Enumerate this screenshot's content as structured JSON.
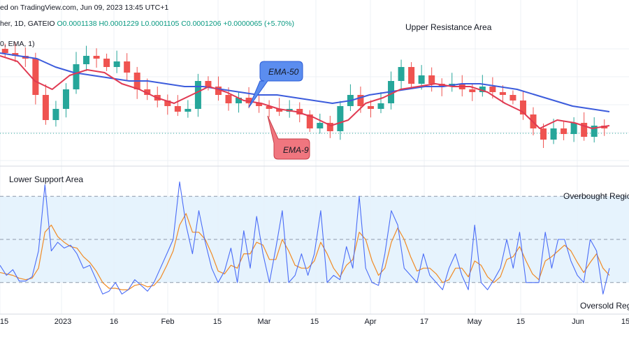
{
  "header": {
    "published": "ed on TradingView.com, Jun 09, 2023 13:45 UTC+1",
    "symbol_line": "her, 1D, GATEIO",
    "ohlc": {
      "open": "O0.0001138",
      "high": "H0.0001229",
      "low": "L0.0001105",
      "close": "C0.0001206",
      "change": "+0.0000065 (+5.70%)"
    },
    "ema_line": "0, EMA, 1)"
  },
  "annotations": {
    "upper_resistance": "Upper Resistance Area",
    "lower_support": "Lower Support Area",
    "overbought": "Overbought Regio",
    "oversold": "Oversold Regi",
    "ema50": "EMA-50",
    "ema9": "EMA-9"
  },
  "xaxis": {
    "tick_labels": [
      "15",
      "2023",
      "16",
      "Feb",
      "15",
      "Mar",
      "15",
      "Apr",
      "17",
      "May",
      "15",
      "Jun",
      "15"
    ]
  },
  "chart_data": {
    "type": "line",
    "price_panel": {
      "timeframe": "1D",
      "exchange": "GATEIO",
      "last": {
        "open": 0.0001138,
        "high": 0.0001229,
        "low": 0.0001105,
        "close": 0.0001206,
        "change": 6.5e-06,
        "change_pct": 5.7
      },
      "price_trace": [
        0.000151,
        0.00015,
        0.000149,
        0.000136,
        0.000127,
        0.000131,
        0.000138,
        0.000147,
        0.00015,
        0.000149,
        0.000146,
        0.000148,
        0.000144,
        0.000138,
        0.000136,
        0.000134,
        0.000132,
        0.00013,
        0.000131,
        0.000141,
        0.000139,
        0.000136,
        0.000133,
        0.000135,
        0.000133,
        0.000132,
        0.000131,
        0.00013,
        0.000131,
        0.000129,
        0.000124,
        0.000126,
        0.000123,
        0.000132,
        0.000136,
        0.000132,
        0.000131,
        0.000133,
        0.000141,
        0.000146,
        0.00014,
        0.000143,
        0.00014,
        0.000139,
        0.00014,
        0.000138,
        0.000137,
        0.000139,
        0.000137,
        0.000136,
        0.000134,
        0.000129,
        0.000124,
        0.00012,
        0.000124,
        0.000122,
        0.000126,
        0.000121,
        0.000125,
        0.000124
      ],
      "series": [
        {
          "name": "EMA-50",
          "color": "#3c5cdc",
          "values": [
            0.000151,
            0.00015,
            0.000149,
            0.000146,
            0.000144,
            0.000143,
            0.000142,
            0.000141,
            0.000141,
            0.00014,
            0.000139,
            0.000139,
            0.000138,
            0.000137,
            0.000136,
            0.000136,
            0.000135,
            0.000134,
            0.000133,
            0.000134,
            0.000136,
            0.000137,
            0.000138,
            0.000139,
            0.000139,
            0.00014,
            0.00014,
            0.000139,
            0.000138,
            0.000136,
            0.000134,
            0.000132,
            0.000131,
            0.00013
          ]
        },
        {
          "name": "EMA-9",
          "color": "#e03a52",
          "values": [
            0.00015,
            0.000148,
            0.000141,
            0.000138,
            0.000143,
            0.000145,
            0.000144,
            0.00014,
            0.000138,
            0.000135,
            0.000133,
            0.000136,
            0.000139,
            0.000137,
            0.000134,
            0.000133,
            0.000131,
            0.00013,
            0.000128,
            0.000125,
            0.000127,
            0.000133,
            0.000135,
            0.000138,
            0.000139,
            0.00014,
            0.000139,
            0.000139,
            0.000137,
            0.000133,
            0.00013,
            0.000124,
            0.000127,
            0.000126,
            0.000124,
            0.000125
          ]
        }
      ]
    },
    "oscillator_panel": {
      "ylim": [
        0,
        100
      ],
      "levels": [
        {
          "value": 80,
          "label": "Overbought Regio"
        },
        {
          "value": 50
        },
        {
          "value": 20,
          "label": "Oversold Regi"
        }
      ],
      "series": [
        {
          "name": "%K",
          "color": "#4a6cf7",
          "values": [
            32,
            25,
            29,
            21,
            21,
            24,
            42,
            88,
            42,
            48,
            44,
            46,
            40,
            30,
            32,
            22,
            12,
            14,
            20,
            12,
            15,
            22,
            18,
            14,
            20,
            30,
            40,
            50,
            90,
            60,
            40,
            70,
            48,
            30,
            20,
            28,
            44,
            20,
            56,
            30,
            66,
            40,
            20,
            44,
            70,
            20,
            25,
            40,
            25,
            40,
            70,
            20,
            25,
            22,
            45,
            30,
            80,
            30,
            20,
            18,
            40,
            70,
            60,
            30,
            25,
            20,
            40,
            25,
            20,
            15,
            30,
            40,
            25,
            15,
            60,
            20,
            15,
            22,
            30,
            50,
            30,
            55,
            20,
            20,
            20,
            55,
            30,
            50,
            50,
            35,
            25,
            20,
            50,
            42,
            12,
            30
          ]
        },
        {
          "name": "%D",
          "color": "#f08a24",
          "values": [
            27,
            26,
            25,
            23,
            22,
            23,
            30,
            55,
            60,
            52,
            48,
            45,
            44,
            38,
            34,
            28,
            20,
            16,
            16,
            15,
            15,
            18,
            19,
            17,
            18,
            23,
            32,
            42,
            60,
            68,
            55,
            55,
            50,
            40,
            28,
            26,
            32,
            30,
            40,
            40,
            48,
            46,
            36,
            36,
            50,
            42,
            32,
            30,
            30,
            35,
            48,
            40,
            30,
            24,
            32,
            36,
            55,
            50,
            35,
            25,
            30,
            48,
            58,
            50,
            38,
            28,
            30,
            30,
            26,
            20,
            22,
            30,
            30,
            24,
            35,
            32,
            24,
            20,
            24,
            36,
            38,
            45,
            35,
            26,
            22,
            35,
            38,
            42,
            46,
            42,
            34,
            27,
            34,
            40,
            30,
            25
          ]
        }
      ]
    },
    "legend": "none",
    "grid": true
  }
}
